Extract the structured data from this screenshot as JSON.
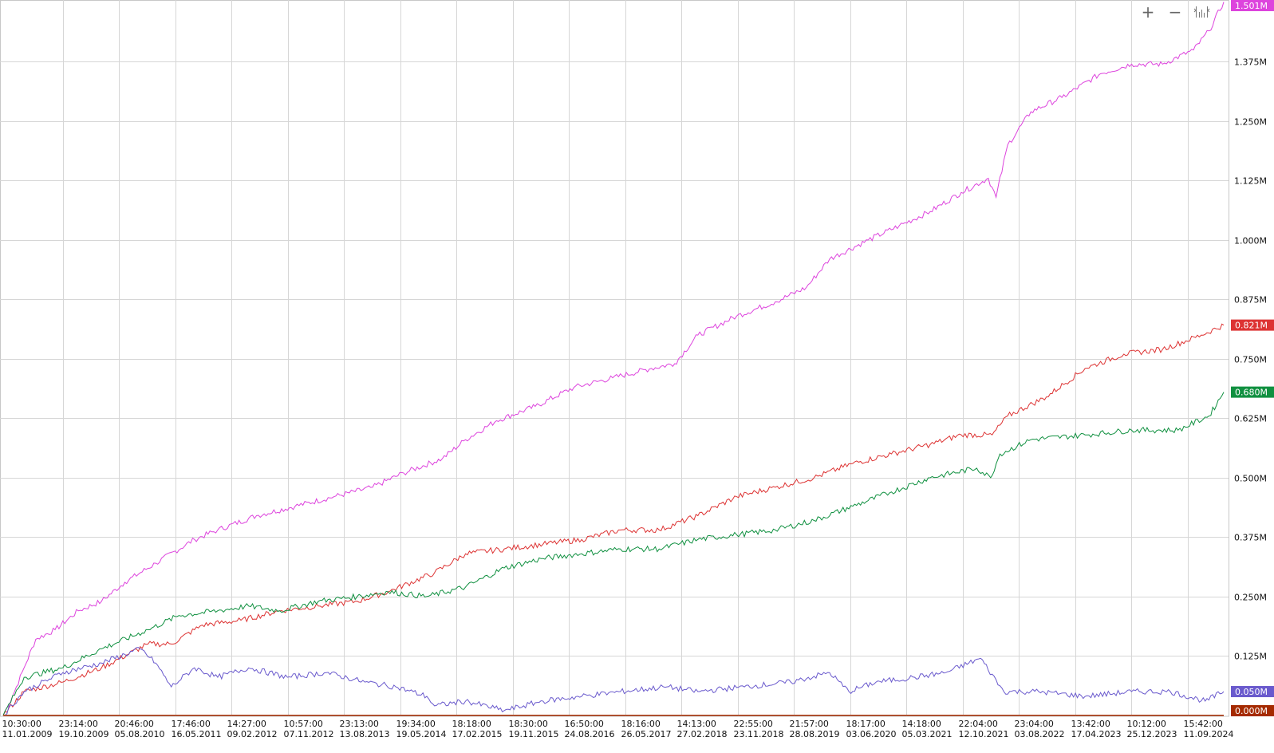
{
  "toolbar": {
    "zoom_in_icon": "plus-icon",
    "zoom_out_icon": "minus-icon",
    "autoscale_icon": "fit-chart-icon"
  },
  "chart_data": {
    "type": "line",
    "title": "",
    "xlabel": "",
    "ylabel": "",
    "grid": true,
    "ylim": [
      -0.002,
      1.505
    ],
    "y_ticks": [
      0.125,
      0.25,
      0.375,
      0.5,
      0.625,
      0.75,
      0.875,
      1.0,
      1.125,
      1.25,
      1.375
    ],
    "y_tick_labels": [
      "0.125M",
      "0.250M",
      "0.375M",
      "0.500M",
      "0.625M",
      "0.750M",
      "0.875M",
      "1.000M",
      "1.125M",
      "1.250M",
      "1.375M"
    ],
    "x_ticks": [
      [
        "10:30:00",
        "11.01.2009"
      ],
      [
        "23:14:00",
        "19.10.2009"
      ],
      [
        "20:46:00",
        "05.08.2010"
      ],
      [
        "17:46:00",
        "16.05.2011"
      ],
      [
        "14:27:00",
        "09.02.2012"
      ],
      [
        "10:57:00",
        "07.11.2012"
      ],
      [
        "23:13:00",
        "13.08.2013"
      ],
      [
        "19:34:00",
        "19.05.2014"
      ],
      [
        "18:18:00",
        "17.02.2015"
      ],
      [
        "18:30:00",
        "19.11.2015"
      ],
      [
        "16:50:00",
        "24.08.2016"
      ],
      [
        "18:16:00",
        "26.05.2017"
      ],
      [
        "14:13:00",
        "27.02.2018"
      ],
      [
        "22:55:00",
        "23.11.2018"
      ],
      [
        "21:57:00",
        "28.08.2019"
      ],
      [
        "18:17:00",
        "03.06.2020"
      ],
      [
        "14:18:00",
        "05.03.2021"
      ],
      [
        "22:04:00",
        "12.10.2021"
      ],
      [
        "23:04:00",
        "03.08.2022"
      ],
      [
        "13:42:00",
        "17.04.2023"
      ],
      [
        "10:12:00",
        "25.12.2023"
      ],
      [
        "15:42:00",
        "11.09.2024"
      ]
    ],
    "series": [
      {
        "color": "#dd44dd",
        "last_label": "1.501M",
        "values": [
          [
            2009.03,
            0.0
          ],
          [
            2009.15,
            0.04
          ],
          [
            2009.3,
            0.1
          ],
          [
            2009.45,
            0.16
          ],
          [
            2009.7,
            0.18
          ],
          [
            2010.0,
            0.22
          ],
          [
            2010.3,
            0.24
          ],
          [
            2010.6,
            0.28
          ],
          [
            2011.0,
            0.32
          ],
          [
            2011.5,
            0.37
          ],
          [
            2011.8,
            0.39
          ],
          [
            2012.3,
            0.42
          ],
          [
            2012.8,
            0.44
          ],
          [
            2013.3,
            0.46
          ],
          [
            2013.8,
            0.48
          ],
          [
            2014.2,
            0.51
          ],
          [
            2014.7,
            0.54
          ],
          [
            2015.0,
            0.58
          ],
          [
            2015.4,
            0.62
          ],
          [
            2015.9,
            0.65
          ],
          [
            2016.4,
            0.69
          ],
          [
            2016.9,
            0.71
          ],
          [
            2017.4,
            0.73
          ],
          [
            2017.7,
            0.74
          ],
          [
            2018.0,
            0.8
          ],
          [
            2018.5,
            0.84
          ],
          [
            2019.0,
            0.87
          ],
          [
            2019.4,
            0.9
          ],
          [
            2019.7,
            0.96
          ],
          [
            2020.2,
            1.0
          ],
          [
            2020.6,
            1.03
          ],
          [
            2021.0,
            1.06
          ],
          [
            2021.4,
            1.1
          ],
          [
            2021.75,
            1.13
          ],
          [
            2021.85,
            1.09
          ],
          [
            2022.0,
            1.2
          ],
          [
            2022.3,
            1.27
          ],
          [
            2022.7,
            1.3
          ],
          [
            2023.2,
            1.35
          ],
          [
            2023.6,
            1.37
          ],
          [
            2024.0,
            1.37
          ],
          [
            2024.4,
            1.4
          ],
          [
            2024.6,
            1.44
          ],
          [
            2024.79,
            1.501
          ]
        ]
      },
      {
        "color": "#dd3333",
        "last_label": "0.821M",
        "values": [
          [
            2009.03,
            0.0
          ],
          [
            2009.3,
            0.05
          ],
          [
            2009.8,
            0.07
          ],
          [
            2010.3,
            0.1
          ],
          [
            2010.9,
            0.15
          ],
          [
            2011.2,
            0.15
          ],
          [
            2011.6,
            0.19
          ],
          [
            2012.1,
            0.2
          ],
          [
            2012.6,
            0.22
          ],
          [
            2013.1,
            0.23
          ],
          [
            2013.6,
            0.24
          ],
          [
            2014.0,
            0.26
          ],
          [
            2014.6,
            0.3
          ],
          [
            2015.0,
            0.34
          ],
          [
            2015.5,
            0.35
          ],
          [
            2016.0,
            0.36
          ],
          [
            2016.5,
            0.37
          ],
          [
            2017.0,
            0.39
          ],
          [
            2017.5,
            0.39
          ],
          [
            2018.0,
            0.42
          ],
          [
            2018.5,
            0.46
          ],
          [
            2019.0,
            0.48
          ],
          [
            2019.5,
            0.5
          ],
          [
            2020.0,
            0.53
          ],
          [
            2020.5,
            0.55
          ],
          [
            2021.0,
            0.57
          ],
          [
            2021.4,
            0.59
          ],
          [
            2021.8,
            0.59
          ],
          [
            2022.0,
            0.63
          ],
          [
            2022.5,
            0.67
          ],
          [
            2023.0,
            0.73
          ],
          [
            2023.5,
            0.76
          ],
          [
            2024.0,
            0.77
          ],
          [
            2024.5,
            0.8
          ],
          [
            2024.79,
            0.821
          ]
        ]
      },
      {
        "color": "#109040",
        "last_label": "0.680M",
        "values": [
          [
            2009.03,
            0.0
          ],
          [
            2009.3,
            0.08
          ],
          [
            2009.8,
            0.1
          ],
          [
            2010.3,
            0.14
          ],
          [
            2010.9,
            0.18
          ],
          [
            2011.3,
            0.21
          ],
          [
            2011.8,
            0.22
          ],
          [
            2012.2,
            0.23
          ],
          [
            2012.6,
            0.22
          ],
          [
            2013.1,
            0.24
          ],
          [
            2013.6,
            0.25
          ],
          [
            2014.0,
            0.26
          ],
          [
            2014.5,
            0.25
          ],
          [
            2015.0,
            0.27
          ],
          [
            2015.5,
            0.31
          ],
          [
            2016.0,
            0.33
          ],
          [
            2016.5,
            0.34
          ],
          [
            2017.0,
            0.35
          ],
          [
            2017.5,
            0.35
          ],
          [
            2018.0,
            0.37
          ],
          [
            2018.5,
            0.38
          ],
          [
            2019.0,
            0.39
          ],
          [
            2019.5,
            0.41
          ],
          [
            2020.0,
            0.44
          ],
          [
            2020.5,
            0.47
          ],
          [
            2021.0,
            0.5
          ],
          [
            2021.6,
            0.52
          ],
          [
            2021.78,
            0.5
          ],
          [
            2021.9,
            0.55
          ],
          [
            2022.3,
            0.58
          ],
          [
            2023.0,
            0.59
          ],
          [
            2023.6,
            0.6
          ],
          [
            2024.2,
            0.6
          ],
          [
            2024.6,
            0.63
          ],
          [
            2024.79,
            0.68
          ]
        ]
      },
      {
        "color": "#6a5acd",
        "last_label": "0.050M",
        "values": [
          [
            2009.03,
            0.0
          ],
          [
            2009.3,
            0.05
          ],
          [
            2009.8,
            0.09
          ],
          [
            2010.3,
            0.11
          ],
          [
            2010.8,
            0.14
          ],
          [
            2011.0,
            0.11
          ],
          [
            2011.2,
            0.06
          ],
          [
            2011.5,
            0.1
          ],
          [
            2011.8,
            0.08
          ],
          [
            2012.2,
            0.1
          ],
          [
            2012.7,
            0.08
          ],
          [
            2013.2,
            0.09
          ],
          [
            2013.7,
            0.07
          ],
          [
            2014.1,
            0.06
          ],
          [
            2014.5,
            0.04
          ],
          [
            2014.6,
            0.02
          ],
          [
            2015.0,
            0.03
          ],
          [
            2015.5,
            0.01
          ],
          [
            2016.0,
            0.03
          ],
          [
            2016.5,
            0.04
          ],
          [
            2017.0,
            0.05
          ],
          [
            2017.6,
            0.06
          ],
          [
            2018.0,
            0.05
          ],
          [
            2018.6,
            0.06
          ],
          [
            2019.2,
            0.07
          ],
          [
            2019.7,
            0.09
          ],
          [
            2019.95,
            0.05
          ],
          [
            2020.3,
            0.07
          ],
          [
            2020.8,
            0.08
          ],
          [
            2021.2,
            0.09
          ],
          [
            2021.65,
            0.12
          ],
          [
            2021.95,
            0.05
          ],
          [
            2022.4,
            0.05
          ],
          [
            2023.0,
            0.04
          ],
          [
            2023.6,
            0.05
          ],
          [
            2024.1,
            0.05
          ],
          [
            2024.55,
            0.03
          ],
          [
            2024.79,
            0.05
          ]
        ]
      },
      {
        "color": "#a52a00",
        "last_label": "0.000M",
        "values": [
          [
            2009.03,
            0.0
          ],
          [
            2024.79,
            0.0
          ]
        ]
      }
    ]
  }
}
